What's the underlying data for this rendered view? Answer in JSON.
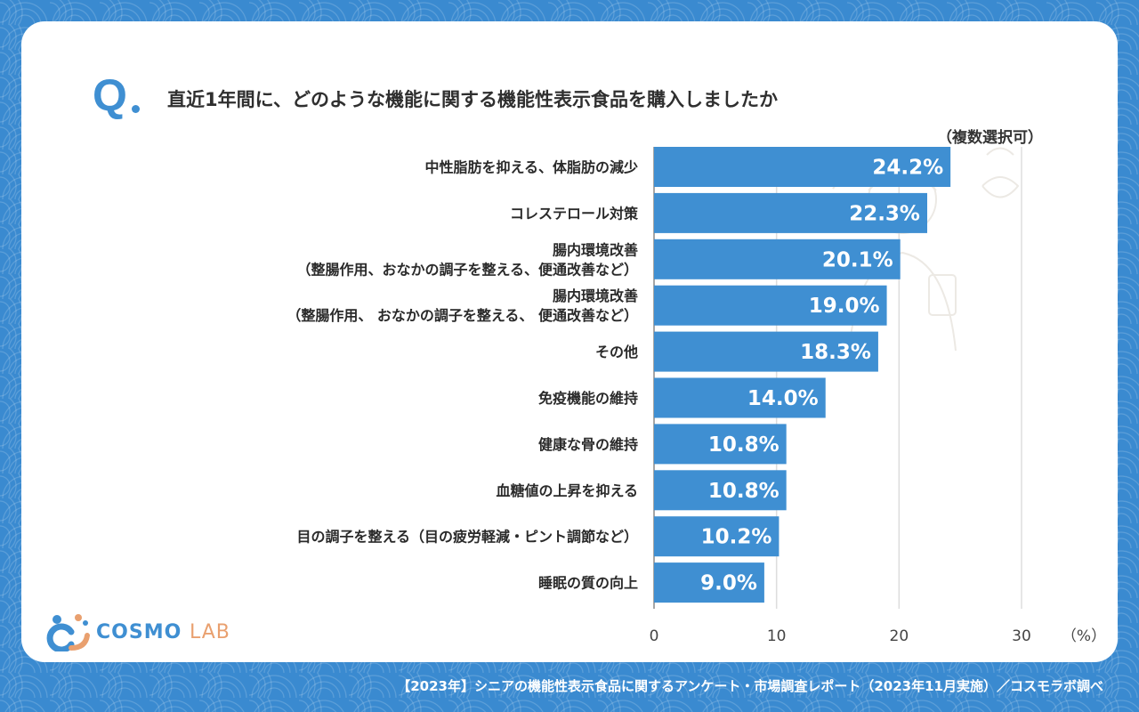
{
  "question": {
    "marker": "Q",
    "text": "直近1年間に、どのような機能に関する機能性表示食品を購入しましたか",
    "note": "（複数選択可）"
  },
  "colors": {
    "bar": "#3f8fd2",
    "accent": "#3f8fd2",
    "background": "#3a8ad0"
  },
  "chart_data": {
    "type": "bar",
    "orientation": "horizontal",
    "categories": [
      [
        "中性脂肪を抑える、体脂肪の減少"
      ],
      [
        "コレステロール対策"
      ],
      [
        "腸内環境改善",
        "（整腸作用、おなかの調子を整える、便通改善など）"
      ],
      [
        "腸内環境改善",
        "（整腸作用、 おなかの調子を整える、 便通改善など）"
      ],
      [
        "その他"
      ],
      [
        "免疫機能の維持"
      ],
      [
        "健康な骨の維持"
      ],
      [
        "血糖値の上昇を抑える"
      ],
      [
        "目の調子を整える（目の疲労軽減・ピント調節など）"
      ],
      [
        "睡眠の質の向上"
      ]
    ],
    "values": [
      24.2,
      22.3,
      20.1,
      19.0,
      18.3,
      14.0,
      10.8,
      10.8,
      10.2,
      9.0
    ],
    "value_labels": [
      "24.2%",
      "22.3%",
      "20.1%",
      "19.0%",
      "18.3%",
      "14.0%",
      "10.8%",
      "10.8%",
      "10.2%",
      "9.0%"
    ],
    "xlim": [
      0,
      30
    ],
    "xticks": [
      0,
      10,
      20,
      30
    ],
    "xlabel": "（%）",
    "grid": true
  },
  "logo": {
    "main": "COSMO",
    "sub": "LAB"
  },
  "footer": "【2023年】シニアの機能性表示食品に関するアンケート・市場調査レポート（2023年11月実施）／コスモラボ調べ"
}
